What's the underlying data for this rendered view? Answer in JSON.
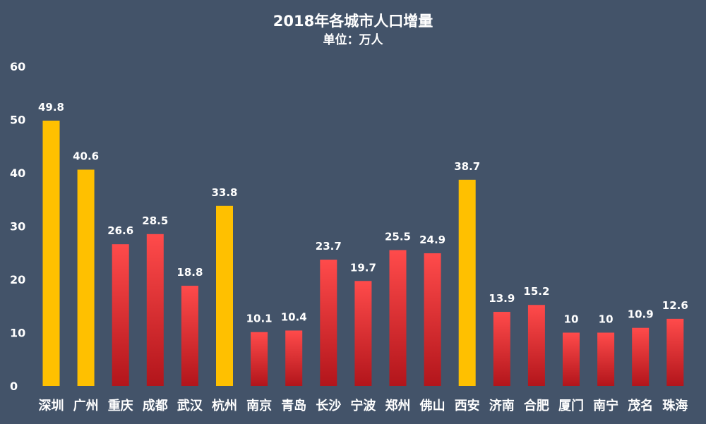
{
  "chart_data": {
    "type": "bar",
    "title": "2018年各城市人口增量",
    "subtitle": "单位：万人",
    "xlabel": "",
    "ylabel": "",
    "ylim": [
      0,
      60
    ],
    "yticks": [
      "0",
      "10",
      "20",
      "30",
      "40",
      "50",
      "60"
    ],
    "grid": false,
    "legend": "none",
    "categories": [
      "深圳",
      "广州",
      "重庆",
      "成都",
      "武汉",
      "杭州",
      "南京",
      "青岛",
      "长沙",
      "宁波",
      "郑州",
      "佛山",
      "西安",
      "济南",
      "合肥",
      "厦门",
      "南宁",
      "茂名",
      "珠海"
    ],
    "values": [
      49.8,
      40.6,
      26.6,
      28.5,
      18.8,
      33.8,
      10.1,
      10.4,
      23.7,
      19.7,
      25.5,
      24.9,
      38.7,
      13.9,
      15.2,
      10,
      10,
      10.9,
      12.6
    ],
    "data_labels": [
      "49.8",
      "40.6",
      "26.6",
      "28.5",
      "18.8",
      "33.8",
      "10.1",
      "10.4",
      "23.7",
      "19.7",
      "25.5",
      "24.9",
      "38.7",
      "13.9",
      "15.2",
      "10",
      "10",
      "10.9",
      "12.6"
    ],
    "highlight": [
      true,
      true,
      false,
      false,
      false,
      true,
      false,
      false,
      false,
      false,
      false,
      false,
      true,
      false,
      false,
      false,
      false,
      false,
      false
    ],
    "colors": {
      "background": "#435369",
      "highlight_bar": "#FFC000",
      "bar_top": "#FF4B4B",
      "bar_bottom": "#B2151B",
      "text": "#FFFFFF"
    }
  }
}
